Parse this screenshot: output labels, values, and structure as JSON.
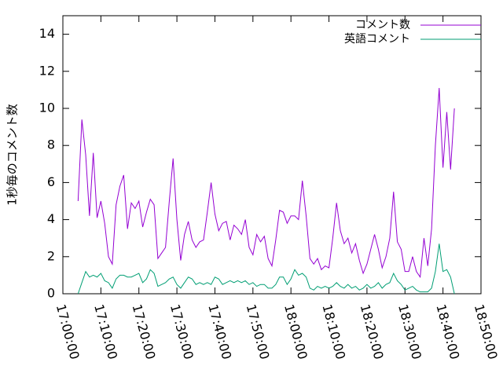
{
  "chart_data": {
    "type": "line",
    "y_label": "1秒毎のコメント数",
    "x": [
      "17:04:00",
      "17:05:00",
      "17:06:00",
      "17:07:00",
      "17:08:00",
      "17:09:00",
      "17:10:00",
      "17:11:00",
      "17:12:00",
      "17:13:00",
      "17:14:00",
      "17:15:00",
      "17:16:00",
      "17:17:00",
      "17:18:00",
      "17:19:00",
      "17:20:00",
      "17:21:00",
      "17:22:00",
      "17:23:00",
      "17:24:00",
      "17:25:00",
      "17:26:00",
      "17:27:00",
      "17:28:00",
      "17:29:00",
      "17:30:00",
      "17:31:00",
      "17:32:00",
      "17:33:00",
      "17:34:00",
      "17:35:00",
      "17:36:00",
      "17:37:00",
      "17:38:00",
      "17:39:00",
      "17:40:00",
      "17:41:00",
      "17:42:00",
      "17:43:00",
      "17:44:00",
      "17:45:00",
      "17:46:00",
      "17:47:00",
      "17:48:00",
      "17:49:00",
      "17:50:00",
      "17:51:00",
      "17:52:00",
      "17:53:00",
      "17:54:00",
      "17:55:00",
      "17:56:00",
      "17:57:00",
      "17:58:00",
      "17:59:00",
      "18:00:00",
      "18:01:00",
      "18:02:00",
      "18:03:00",
      "18:04:00",
      "18:05:00",
      "18:06:00",
      "18:07:00",
      "18:08:00",
      "18:09:00",
      "18:10:00",
      "18:11:00",
      "18:12:00",
      "18:13:00",
      "18:14:00",
      "18:15:00",
      "18:16:00",
      "18:17:00",
      "18:18:00",
      "18:19:00",
      "18:20:00",
      "18:21:00",
      "18:22:00",
      "18:23:00",
      "18:24:00",
      "18:25:00",
      "18:26:00",
      "18:27:00",
      "18:28:00",
      "18:29:00",
      "18:30:00",
      "18:31:00",
      "18:32:00",
      "18:33:00",
      "18:34:00",
      "18:35:00",
      "18:36:00",
      "18:37:00",
      "18:38:00",
      "18:39:00",
      "18:40:00",
      "18:41:00",
      "18:42:00",
      "18:43:00"
    ],
    "series": [
      {
        "name": "コメント数",
        "color": "#9400d3",
        "values": [
          5.0,
          9.4,
          7.5,
          4.2,
          7.6,
          4.1,
          5.0,
          3.8,
          2.0,
          1.6,
          4.8,
          5.8,
          6.4,
          3.5,
          4.9,
          4.6,
          5.0,
          3.6,
          4.4,
          5.1,
          4.8,
          1.9,
          2.2,
          2.5,
          5.0,
          7.3,
          4.0,
          1.8,
          3.2,
          3.9,
          2.9,
          2.5,
          2.8,
          2.9,
          4.4,
          6.0,
          4.3,
          3.4,
          3.8,
          3.9,
          2.9,
          3.7,
          3.5,
          3.2,
          4.0,
          2.5,
          2.1,
          3.2,
          2.8,
          3.1,
          1.9,
          1.5,
          2.9,
          4.5,
          4.4,
          3.8,
          4.2,
          4.2,
          4.0,
          6.1,
          4.2,
          1.9,
          1.6,
          1.9,
          1.3,
          1.5,
          1.4,
          3.0,
          4.9,
          3.4,
          2.7,
          3.0,
          2.2,
          2.7,
          1.8,
          1.1,
          1.6,
          2.4,
          3.2,
          2.4,
          1.4,
          2.0,
          3.0,
          5.5,
          2.8,
          2.4,
          1.2,
          1.2,
          2.0,
          1.2,
          0.9,
          3.0,
          1.5,
          3.5,
          8.0,
          11.1,
          6.8,
          9.8,
          6.7,
          10.0
        ]
      },
      {
        "name": "英語コメント",
        "color": "#009e73",
        "values": [
          0.0,
          0.6,
          1.2,
          0.9,
          1.0,
          0.9,
          1.1,
          0.7,
          0.6,
          0.3,
          0.8,
          1.0,
          1.0,
          0.9,
          0.9,
          1.0,
          1.1,
          0.6,
          0.8,
          1.3,
          1.1,
          0.4,
          0.5,
          0.6,
          0.8,
          0.9,
          0.5,
          0.3,
          0.6,
          0.9,
          0.8,
          0.5,
          0.6,
          0.5,
          0.6,
          0.5,
          0.9,
          0.8,
          0.5,
          0.6,
          0.7,
          0.6,
          0.7,
          0.6,
          0.7,
          0.5,
          0.6,
          0.4,
          0.5,
          0.5,
          0.3,
          0.3,
          0.5,
          0.9,
          0.9,
          0.5,
          0.8,
          1.3,
          1.0,
          1.1,
          0.9,
          0.3,
          0.2,
          0.4,
          0.3,
          0.4,
          0.3,
          0.4,
          0.6,
          0.4,
          0.3,
          0.5,
          0.3,
          0.4,
          0.2,
          0.3,
          0.5,
          0.3,
          0.4,
          0.6,
          0.3,
          0.5,
          0.6,
          1.1,
          0.7,
          0.5,
          0.2,
          0.3,
          0.4,
          0.2,
          0.1,
          0.1,
          0.1,
          0.3,
          1.2,
          2.7,
          1.2,
          1.3,
          0.9,
          0.0
        ]
      }
    ],
    "xlim": [
      "17:00:00",
      "18:50:00"
    ],
    "xticks": [
      "17:00:00",
      "17:10:00",
      "17:20:00",
      "17:30:00",
      "17:40:00",
      "17:50:00",
      "18:00:00",
      "18:10:00",
      "18:20:00",
      "18:30:00",
      "18:40:00",
      "18:50:00"
    ],
    "ylim": [
      0,
      15
    ],
    "yticks": [
      0,
      2,
      4,
      6,
      8,
      10,
      12,
      14
    ],
    "legend": "top-right"
  }
}
